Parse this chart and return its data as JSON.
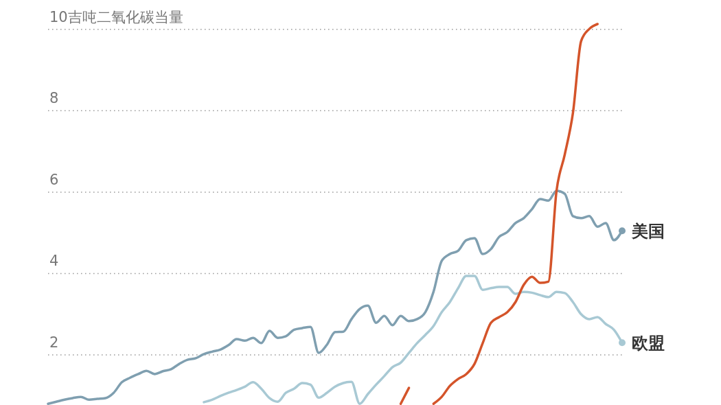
{
  "chart_data": {
    "type": "line",
    "categories": [
      null,
      null,
      null,
      null,
      null,
      null,
      null,
      null,
      null,
      null,
      null,
      null,
      null,
      null,
      null,
      null,
      null,
      null,
      null,
      null,
      null,
      null,
      null,
      null,
      null,
      null,
      null,
      null,
      null,
      null,
      null,
      null,
      null,
      null,
      null,
      null,
      null,
      null,
      null,
      null,
      null,
      null,
      null,
      null,
      null,
      null,
      null,
      null,
      null,
      null,
      null,
      null,
      null,
      null,
      null,
      null,
      null,
      null,
      null,
      null,
      null,
      null,
      null,
      null,
      null,
      null,
      null,
      null,
      null,
      null,
      null
    ],
    "ylim": [
      0.77,
      10.72
    ],
    "yticks": [
      2,
      4,
      6,
      8,
      {
        "value": 10,
        "label": "10吉吨二氧化碳当量"
      }
    ],
    "grid": "y",
    "series": [
      {
        "name": "美国",
        "color": "#7f9fb0",
        "values": [
          0.8,
          0.85,
          0.9,
          0.94,
          0.97,
          0.9,
          0.92,
          0.94,
          1.07,
          1.33,
          1.44,
          1.53,
          1.61,
          1.53,
          1.6,
          1.65,
          1.78,
          1.88,
          1.92,
          2.02,
          2.08,
          2.13,
          2.24,
          2.39,
          2.35,
          2.42,
          2.29,
          2.59,
          2.42,
          2.46,
          2.62,
          2.66,
          2.69,
          2.05,
          2.25,
          2.56,
          2.57,
          2.88,
          3.13,
          3.21,
          2.79,
          2.96,
          2.73,
          2.96,
          2.83,
          2.88,
          3.05,
          3.55,
          4.31,
          4.48,
          4.56,
          4.82,
          4.87,
          4.48,
          4.6,
          4.9,
          5.02,
          5.24,
          5.36,
          5.58,
          5.83,
          5.79,
          6.03,
          5.96,
          5.41,
          5.36,
          5.41,
          5.15,
          5.24,
          4.82,
          5.05
        ]
      },
      {
        "name": "欧盟",
        "color": "#a8c9d4",
        "values": [
          null,
          null,
          null,
          null,
          null,
          null,
          null,
          null,
          null,
          null,
          null,
          null,
          null,
          null,
          null,
          null,
          null,
          null,
          null,
          0.84,
          0.9,
          0.99,
          1.07,
          1.14,
          1.22,
          1.33,
          1.17,
          0.94,
          0.85,
          1.07,
          1.17,
          1.31,
          1.27,
          0.95,
          1.07,
          1.22,
          1.31,
          1.34,
          0.8,
          1.04,
          1.27,
          1.48,
          1.7,
          1.81,
          2.05,
          2.29,
          2.49,
          2.71,
          3.05,
          3.3,
          3.64,
          3.94,
          3.94,
          3.6,
          3.64,
          3.67,
          3.67,
          3.5,
          3.55,
          3.53,
          3.47,
          3.42,
          3.55,
          3.52,
          3.3,
          3.0,
          2.88,
          2.93,
          2.76,
          2.62,
          2.3
        ]
      },
      {
        "color": "#d4542a",
        "values": [
          null,
          null,
          null,
          null,
          null,
          null,
          null,
          null,
          null,
          null,
          null,
          null,
          null,
          null,
          null,
          null,
          null,
          null,
          null,
          null,
          null,
          null,
          null,
          null,
          null,
          null,
          null,
          null,
          null,
          null,
          null,
          null,
          null,
          null,
          null,
          null,
          null,
          null,
          null,
          null,
          null,
          null,
          null,
          0.8,
          1.19,
          null,
          null,
          0.8,
          0.97,
          1.24,
          1.41,
          1.53,
          1.78,
          2.29,
          2.79,
          2.93,
          3.05,
          3.3,
          3.72,
          3.92,
          3.77,
          3.8,
          6.03,
          6.92,
          7.94,
          9.71,
          10.01,
          10.13,
          null,
          null,
          null
        ]
      }
    ]
  }
}
